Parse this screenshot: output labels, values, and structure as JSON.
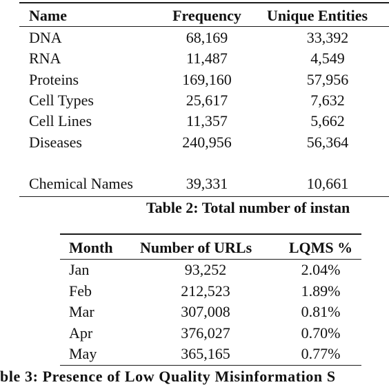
{
  "table1": {
    "headers": [
      "Name",
      "Frequency",
      "Unique Entities"
    ],
    "rows": [
      [
        "DNA",
        "68,169",
        "33,392"
      ],
      [
        "RNA",
        "11,487",
        "4,549"
      ],
      [
        "Proteins",
        "169,160",
        "57,956"
      ],
      [
        "Cell Types",
        "25,617",
        "7,632"
      ],
      [
        "Cell Lines",
        "11,357",
        "5,662"
      ],
      [
        "Diseases",
        "240,956",
        "56,364"
      ],
      [
        "Chemical Names",
        "39,331",
        "10,661"
      ]
    ],
    "caption": "Table 2: Total number of instan"
  },
  "table2": {
    "headers": [
      "Month",
      "Number of URLs",
      "LQMS %"
    ],
    "rows": [
      [
        "Jan",
        "93,252",
        "2.04%"
      ],
      [
        "Feb",
        "212,523",
        "1.89%"
      ],
      [
        "Mar",
        "307,008",
        "0.81%"
      ],
      [
        "Apr",
        "376,027",
        "0.70%"
      ],
      [
        "May",
        "365,165",
        "0.77%"
      ]
    ],
    "caption": "ble 3: Presence of Low Quality Misinformation S"
  }
}
